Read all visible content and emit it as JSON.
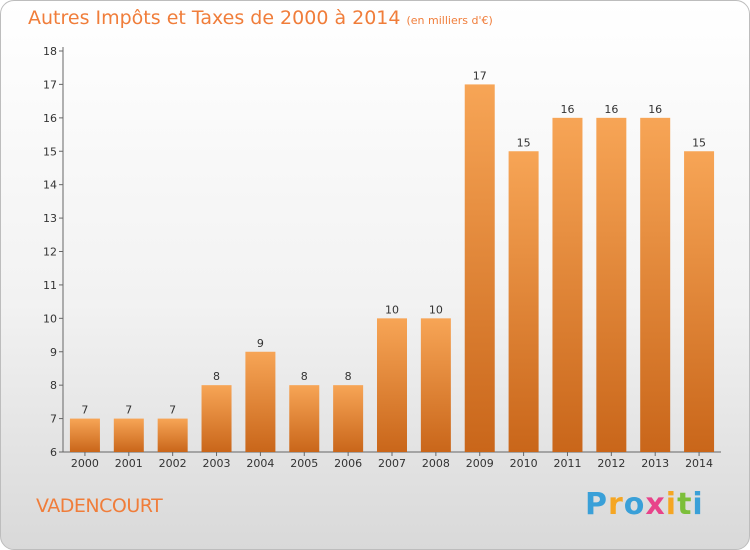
{
  "title": "Autres Impôts et Taxes de 2000 à 2014",
  "unit_note": "(en milliers d'€)",
  "commune": "VADENCOURT",
  "brand": "Proxiti",
  "colors": {
    "accent": "#f07d3a",
    "bar_light": "#f7a556",
    "bar_dark": "#c9661a"
  },
  "chart_data": {
    "type": "bar",
    "categories": [
      "2000",
      "2001",
      "2002",
      "2003",
      "2004",
      "2005",
      "2006",
      "2007",
      "2008",
      "2009",
      "2010",
      "2011",
      "2012",
      "2013",
      "2014"
    ],
    "values": [
      7,
      7,
      7,
      8,
      9,
      8,
      8,
      10,
      10,
      17,
      15,
      16,
      16,
      16,
      15
    ],
    "title": "Autres Impôts et Taxes de 2000 à 2014",
    "ylim": [
      6,
      18
    ],
    "yticks": [
      6,
      7,
      8,
      9,
      10,
      11,
      12,
      13,
      14,
      15,
      16,
      17,
      18
    ],
    "grid": false,
    "legend": "none"
  }
}
